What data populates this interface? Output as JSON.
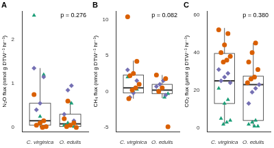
{
  "chart_data": [
    {
      "type": "box",
      "panel": "A",
      "annotation": "p = 0.276",
      "y_label": "N₂O flux (nmol g DTW⁻¹ hr⁻¹)",
      "categories": [
        "C. virginica",
        "O. edulis"
      ],
      "boxes": [
        {
          "whisker_low": 0.0,
          "q1": 0.05,
          "median": 0.15,
          "q3": 0.55,
          "whisker_high": 1.35
        },
        {
          "whisker_low": 0.0,
          "q1": 0.02,
          "median": 0.08,
          "q3": 0.3,
          "whisker_high": 0.6
        }
      ],
      "series": [
        {
          "color": "#d95f02",
          "marker": "circle",
          "values": [
            [
              0.75,
              0.15,
              0.1,
              0.05,
              0.02,
              0.0
            ],
            [
              0.6,
              0.2,
              0.1,
              0.05,
              0.02,
              0.0
            ]
          ]
        },
        {
          "color": "#7570b3",
          "marker": "diamond",
          "values": [
            [
              1.35,
              1.15,
              0.55,
              0.4
            ],
            [
              0.95,
              0.85,
              0.3,
              0.15
            ]
          ]
        },
        {
          "color": "#1b9e77",
          "marker": "triangle",
          "values": [
            [
              2.55,
              1.2,
              0.25,
              0.05
            ],
            [
              0.55,
              0.1,
              0.05,
              0.02
            ]
          ]
        }
      ],
      "ylim": [
        -0.1,
        2.65
      ],
      "yticks": [
        0,
        1,
        2
      ],
      "grid": false
    },
    {
      "type": "box",
      "panel": "B",
      "annotation": "p = 0.082",
      "y_label": "CH₄ flux (nmol g DTW⁻¹ hr⁻¹)",
      "categories": [
        "C. virginica",
        "O. edulis"
      ],
      "boxes": [
        {
          "whisker_low": -1.0,
          "q1": -0.2,
          "median": 0.5,
          "q3": 2.3,
          "whisker_high": 4.3
        },
        {
          "whisker_low": -0.9,
          "q1": -0.3,
          "median": 0.2,
          "q3": 1.0,
          "whisker_high": 2.3
        }
      ],
      "series": [
        {
          "color": "#d95f02",
          "marker": "circle",
          "values": [
            [
              10.4,
              4.2,
              2.5,
              2.2,
              1.0,
              0.5,
              0.2,
              -1.0
            ],
            [
              2.3,
              1.8,
              0.5,
              0.0,
              -4.9
            ]
          ]
        },
        {
          "color": "#7570b3",
          "marker": "diamond",
          "values": [
            [
              3.0,
              1.5,
              -0.2,
              -0.8
            ],
            [
              1.5,
              1.0,
              0.7,
              -0.5
            ]
          ]
        },
        {
          "color": "#1b9e77",
          "marker": "triangle",
          "values": [
            [
              2.0,
              0.3,
              0.0
            ],
            [
              0.1,
              -0.3,
              -0.8
            ]
          ]
        }
      ],
      "ylim": [
        -5.6,
        11.2
      ],
      "yticks": [
        -5,
        0,
        5,
        10
      ],
      "grid": false
    },
    {
      "type": "box",
      "panel": "C",
      "annotation": "p = 0.380",
      "y_label": "CO₂ flux (µmol g DTW⁻¹ hr⁻¹)",
      "categories": [
        "C. virginica",
        "O. edulis"
      ],
      "boxes": [
        {
          "whisker_low": 2,
          "q1": 13,
          "median": 25,
          "q3": 39.5,
          "whisker_high": 53
        },
        {
          "whisker_low": 1,
          "q1": 4,
          "median": 23,
          "q3": 27.5,
          "whisker_high": 45
        }
      ],
      "series": [
        {
          "color": "#d95f02",
          "marker": "circle",
          "values": [
            [
              52,
              50,
              44,
              40,
              38,
              36,
              35
            ],
            [
              45,
              40,
              35,
              31,
              27,
              26,
              24
            ]
          ]
        },
        {
          "color": "#7570b3",
          "marker": "diamond",
          "values": [
            [
              31,
              29,
              27,
              25,
              24
            ],
            [
              23,
              21,
              19,
              13
            ]
          ]
        },
        {
          "color": "#1b9e77",
          "marker": "triangle",
          "values": [
            [
              21,
              15,
              13,
              5,
              4,
              3,
              2
            ],
            [
              4,
              3,
              2,
              1,
              1
            ]
          ]
        }
      ],
      "ylim": [
        -2,
        62
      ],
      "yticks": [
        0,
        20,
        40,
        60
      ],
      "grid": false
    }
  ]
}
